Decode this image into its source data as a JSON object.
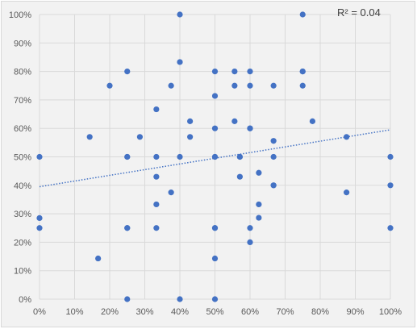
{
  "chart_data": {
    "type": "scatter",
    "title": "",
    "xlabel": "",
    "ylabel": "",
    "xlim": [
      0,
      1
    ],
    "ylim": [
      0,
      1
    ],
    "x_ticks": [
      "0%",
      "10%",
      "20%",
      "30%",
      "40%",
      "50%",
      "60%",
      "70%",
      "80%",
      "90%",
      "100%"
    ],
    "y_ticks": [
      "0%",
      "10%",
      "20%",
      "30%",
      "40%",
      "50%",
      "60%",
      "70%",
      "80%",
      "90%",
      "100%"
    ],
    "grid": true,
    "annotation": "R² = 0.04",
    "trendline": {
      "type": "linear",
      "style": "dotted",
      "y_at_x0": 0.395,
      "y_at_x1": 0.595
    },
    "colors": {
      "marker": "#4472c4",
      "trendline": "#4472c4",
      "grid": "#d9d9d9",
      "background": "#f2f2f2"
    },
    "points": [
      [
        0.0,
        0.5
      ],
      [
        0.0,
        0.285
      ],
      [
        0.0,
        0.25
      ],
      [
        0.143,
        0.57
      ],
      [
        0.167,
        0.143
      ],
      [
        0.2,
        0.75
      ],
      [
        0.25,
        0.8
      ],
      [
        0.25,
        0.5
      ],
      [
        0.25,
        0.5
      ],
      [
        0.25,
        0.25
      ],
      [
        0.25,
        0.25
      ],
      [
        0.25,
        0.0
      ],
      [
        0.286,
        0.57
      ],
      [
        0.333,
        0.667
      ],
      [
        0.333,
        0.5
      ],
      [
        0.333,
        0.43
      ],
      [
        0.333,
        0.333
      ],
      [
        0.333,
        0.25
      ],
      [
        0.375,
        0.75
      ],
      [
        0.375,
        0.375
      ],
      [
        0.4,
        1.0
      ],
      [
        0.4,
        0.833
      ],
      [
        0.4,
        0.5
      ],
      [
        0.4,
        0.0
      ],
      [
        0.429,
        0.625
      ],
      [
        0.429,
        0.57
      ],
      [
        0.5,
        0.8
      ],
      [
        0.5,
        0.714
      ],
      [
        0.5,
        0.6
      ],
      [
        0.5,
        0.5
      ],
      [
        0.5,
        0.5
      ],
      [
        0.5,
        0.25
      ],
      [
        0.5,
        0.25
      ],
      [
        0.5,
        0.143
      ],
      [
        0.5,
        0.0
      ],
      [
        0.556,
        0.8
      ],
      [
        0.556,
        0.75
      ],
      [
        0.556,
        0.625
      ],
      [
        0.571,
        0.5
      ],
      [
        0.571,
        0.5
      ],
      [
        0.571,
        0.43
      ],
      [
        0.6,
        0.8
      ],
      [
        0.6,
        0.75
      ],
      [
        0.6,
        0.6
      ],
      [
        0.6,
        0.6
      ],
      [
        0.6,
        0.25
      ],
      [
        0.6,
        0.2
      ],
      [
        0.625,
        0.444
      ],
      [
        0.625,
        0.333
      ],
      [
        0.625,
        0.286
      ],
      [
        0.667,
        0.75
      ],
      [
        0.667,
        0.556
      ],
      [
        0.667,
        0.5
      ],
      [
        0.667,
        0.4
      ],
      [
        0.667,
        0.4
      ],
      [
        0.75,
        1.0
      ],
      [
        0.75,
        0.8
      ],
      [
        0.75,
        0.8
      ],
      [
        0.75,
        0.75
      ],
      [
        0.778,
        0.625
      ],
      [
        0.875,
        0.57
      ],
      [
        0.875,
        0.375
      ],
      [
        1.0,
        0.5
      ],
      [
        1.0,
        0.4
      ],
      [
        1.0,
        0.25
      ]
    ]
  }
}
